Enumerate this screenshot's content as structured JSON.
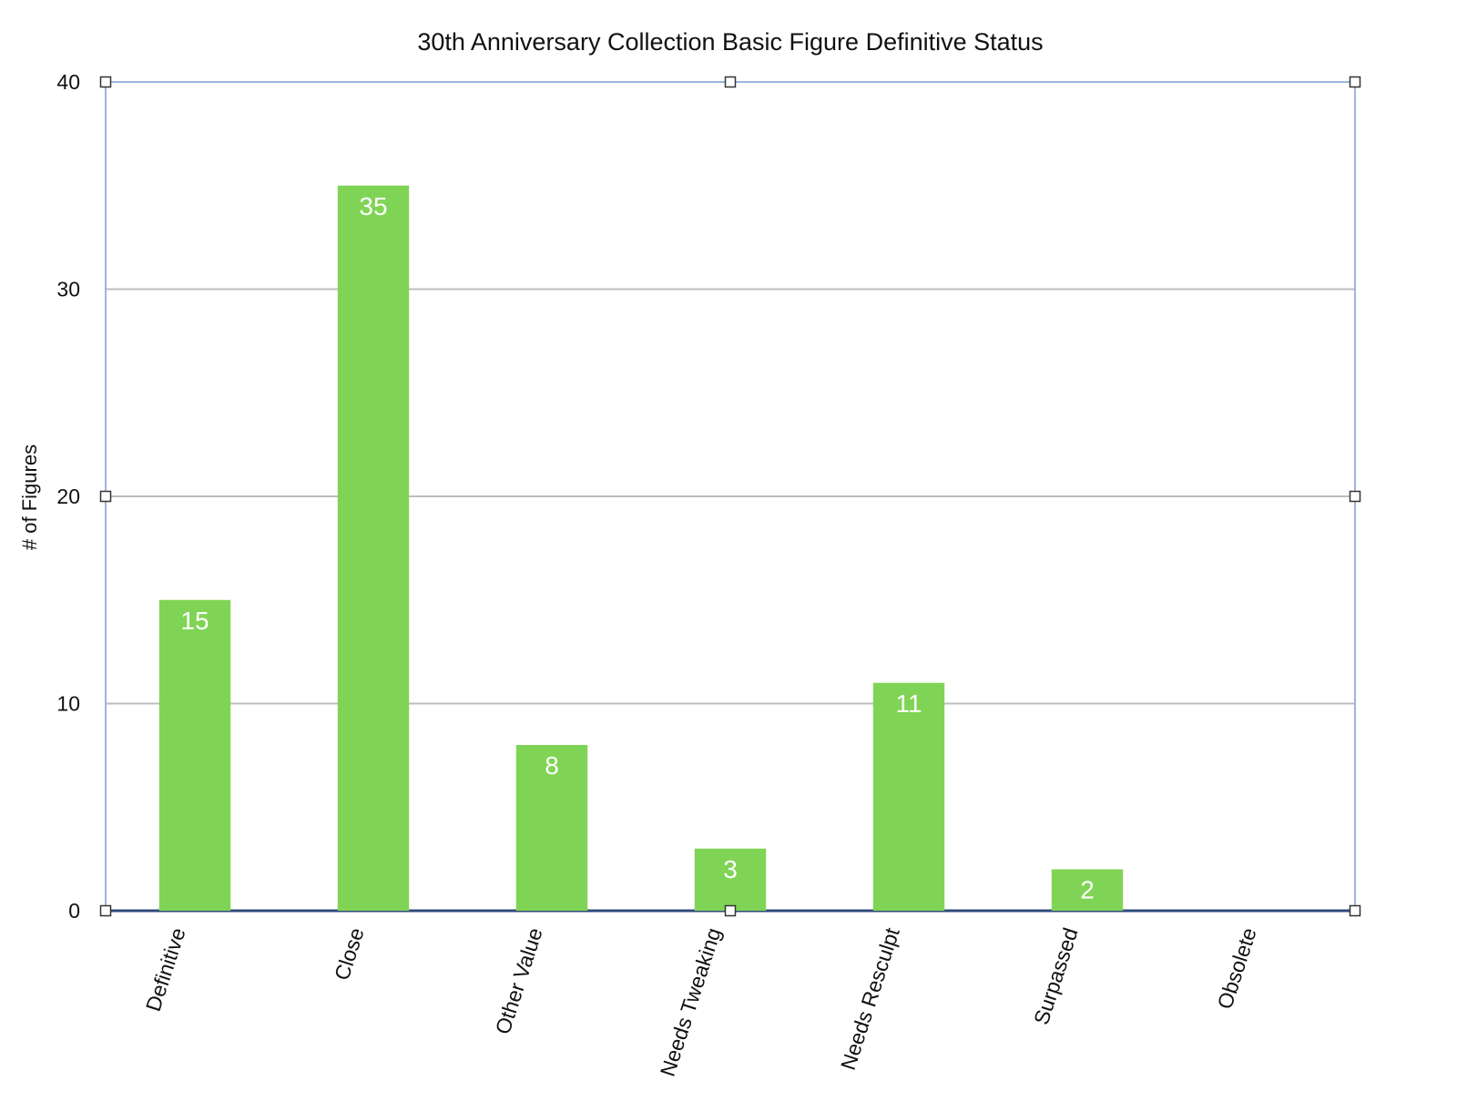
{
  "chart_data": {
    "type": "bar",
    "title": "30th Anniversary Collection Basic Figure Definitive Status",
    "xlabel": "",
    "ylabel": "# of Figures",
    "categories": [
      "Definitive",
      "Close",
      "Other Value",
      "Needs Tweaking",
      "Needs Resculpt",
      "Surpassed",
      "Obsolete"
    ],
    "values": [
      15,
      35,
      8,
      3,
      11,
      2,
      0
    ],
    "data_labels": [
      "15",
      "35",
      "8",
      "3",
      "11",
      "2",
      ""
    ],
    "ylim": [
      0,
      40
    ],
    "yticks": [
      "0",
      "10",
      "20",
      "30",
      "40"
    ],
    "grid": true,
    "legend": "none",
    "colors": {
      "bar": "#80d455",
      "grid": "#bdbdbd",
      "frame": "#9fb4dc",
      "baseline": "#2f4a7a",
      "bar_label": "#ffffff"
    }
  }
}
